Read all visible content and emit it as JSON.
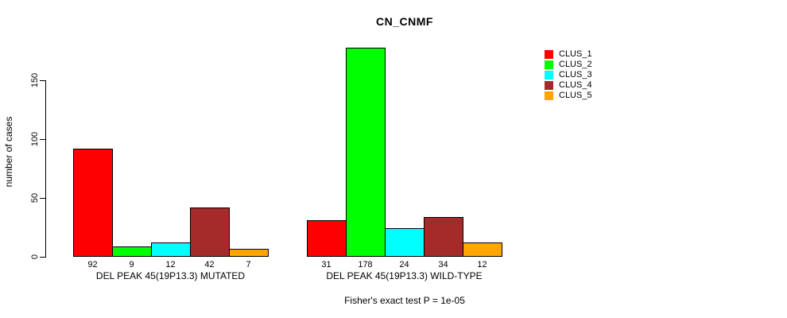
{
  "chart_data": {
    "type": "bar",
    "title": "CN_CNMF",
    "ylabel": "number of cases",
    "yticks": [
      0,
      50,
      100,
      150
    ],
    "ylim": [
      0,
      178
    ],
    "grid": false,
    "legend": {
      "position": "right",
      "entries": [
        {
          "label": "CLUS_1",
          "color": "#FF0000"
        },
        {
          "label": "CLUS_2",
          "color": "#00FF00"
        },
        {
          "label": "CLUS_3",
          "color": "#00FFFF"
        },
        {
          "label": "CLUS_4",
          "color": "#A52A2A"
        },
        {
          "label": "CLUS_5",
          "color": "#FFA500"
        }
      ]
    },
    "groups": [
      {
        "label": "DEL PEAK 45(19P13.3) MUTATED",
        "values": [
          92,
          9,
          12,
          42,
          7
        ]
      },
      {
        "label": "DEL PEAK 45(19P13.3) WILD-TYPE",
        "values": [
          31,
          178,
          24,
          34,
          12
        ]
      }
    ],
    "footnote": "Fisher's exact test P = 1e-05"
  }
}
